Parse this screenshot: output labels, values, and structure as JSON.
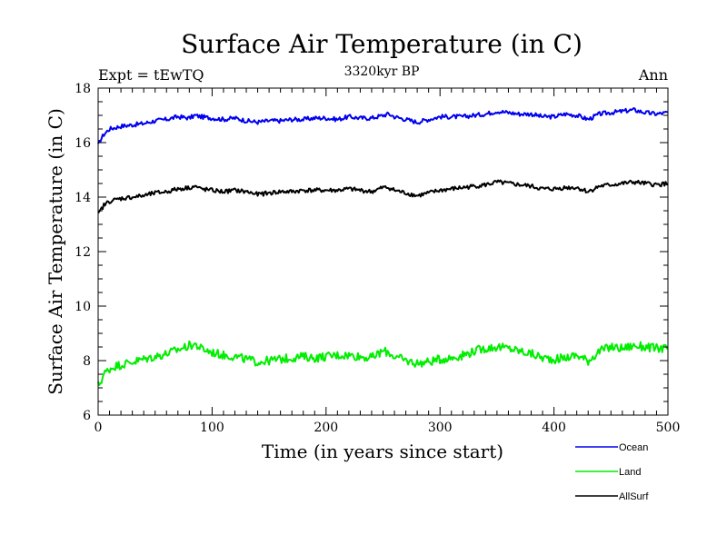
{
  "chart_data": {
    "type": "line",
    "title": "Surface Air Temperature (in C)",
    "subtitle": "3320kyr BP",
    "left_label": "Expt = tEwTQ",
    "right_label": "Ann",
    "xlabel": "Time (in years since start)",
    "ylabel": "Surface Air Temperature (in C)",
    "xlim": [
      0,
      500
    ],
    "ylim": [
      6,
      18
    ],
    "x_ticks": [
      0,
      100,
      200,
      300,
      400,
      500
    ],
    "y_ticks": [
      6,
      8,
      10,
      12,
      14,
      16,
      18
    ],
    "x_tick_labels": [
      "0",
      "100",
      "200",
      "300",
      "400",
      "500"
    ],
    "y_tick_labels": [
      "6",
      "8",
      "10",
      "12",
      "14",
      "16",
      "18"
    ],
    "grid": false,
    "legend_position": "bottom-right, outside plot",
    "x": [
      0,
      2,
      5,
      10,
      15,
      20,
      30,
      40,
      50,
      60,
      70,
      80,
      85,
      90,
      100,
      110,
      120,
      130,
      140,
      150,
      160,
      170,
      180,
      190,
      200,
      210,
      220,
      230,
      240,
      250,
      255,
      260,
      270,
      280,
      290,
      300,
      310,
      320,
      330,
      340,
      350,
      360,
      370,
      380,
      390,
      400,
      410,
      420,
      430,
      440,
      450,
      460,
      470,
      480,
      490,
      500
    ],
    "series": [
      {
        "name": "Ocean",
        "color": "#0000ee",
        "values": [
          15.9,
          16.1,
          16.3,
          16.5,
          16.55,
          16.6,
          16.65,
          16.7,
          16.8,
          16.85,
          16.95,
          16.9,
          17.0,
          16.95,
          16.9,
          16.85,
          16.9,
          16.8,
          16.75,
          16.8,
          16.8,
          16.85,
          16.85,
          16.9,
          16.9,
          16.85,
          16.95,
          16.9,
          16.9,
          17.0,
          17.05,
          16.95,
          16.85,
          16.75,
          16.85,
          16.95,
          16.95,
          16.95,
          17.0,
          17.05,
          17.15,
          17.1,
          17.05,
          17.05,
          16.95,
          16.95,
          17.05,
          17.0,
          16.85,
          17.05,
          17.1,
          17.15,
          17.2,
          17.1,
          17.05,
          17.1
        ]
      },
      {
        "name": "Land",
        "color": "#00ee00",
        "values": [
          7.1,
          7.2,
          7.5,
          7.7,
          7.8,
          7.85,
          7.95,
          8.05,
          8.15,
          8.25,
          8.4,
          8.55,
          8.6,
          8.45,
          8.3,
          8.2,
          8.15,
          8.05,
          7.95,
          8.0,
          8.05,
          8.1,
          8.15,
          8.1,
          8.15,
          8.2,
          8.2,
          8.15,
          8.1,
          8.35,
          8.3,
          8.15,
          8.0,
          7.9,
          7.95,
          8.05,
          8.1,
          8.2,
          8.35,
          8.45,
          8.5,
          8.45,
          8.35,
          8.25,
          8.1,
          8.05,
          8.1,
          8.2,
          8.0,
          8.35,
          8.5,
          8.45,
          8.55,
          8.5,
          8.45,
          8.45
        ]
      },
      {
        "name": "AllSurf",
        "color": "#000000",
        "values": [
          13.35,
          13.5,
          13.7,
          13.85,
          13.9,
          13.95,
          14.0,
          14.05,
          14.15,
          14.2,
          14.3,
          14.35,
          14.4,
          14.3,
          14.25,
          14.2,
          14.25,
          14.2,
          14.1,
          14.15,
          14.2,
          14.2,
          14.25,
          14.25,
          14.25,
          14.25,
          14.3,
          14.25,
          14.2,
          14.35,
          14.35,
          14.25,
          14.15,
          14.05,
          14.15,
          14.25,
          14.3,
          14.35,
          14.4,
          14.45,
          14.55,
          14.5,
          14.45,
          14.4,
          14.3,
          14.3,
          14.35,
          14.35,
          14.2,
          14.4,
          14.45,
          14.5,
          14.55,
          14.5,
          14.45,
          14.5
        ]
      }
    ]
  }
}
